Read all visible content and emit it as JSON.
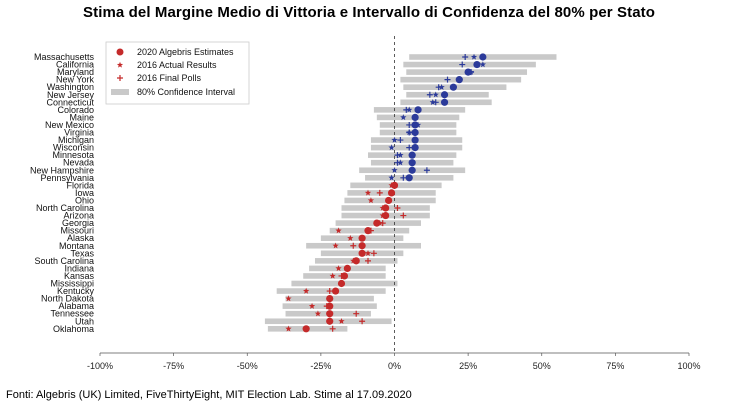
{
  "title": "Stima del Margine Medio di Vittoria e Intervallo di Confidenza del 80% per Stato",
  "source": "Fonti: Algebris (UK) Limited, FiveThirtyEight, MIT Election Lab. Stime al 17.09.2020",
  "colors": {
    "dem": "#2b3a9a",
    "rep": "#c42a2a",
    "ci": "#c9c9c9",
    "zero_line": "#333333",
    "axis": "#555555"
  },
  "chart_data": {
    "type": "scatter",
    "title": "Stima del Margine Medio di Vittoria e Intervallo di Confidenza del 80% per Stato",
    "xlabel": "",
    "ylabel": "",
    "xlim": [
      -100,
      100
    ],
    "x_ticks": [
      -100,
      -75,
      -50,
      -25,
      0,
      25,
      50,
      75,
      100
    ],
    "x_tick_labels": [
      "-100%",
      "-75%",
      "-50%",
      "-25%",
      "0%",
      "25%",
      "50%",
      "75%",
      "100%"
    ],
    "zero_line": "dashed",
    "grid": false,
    "legend_position": "top-left",
    "legend": [
      {
        "label": "2020 Algebris Estimates",
        "marker": "circle"
      },
      {
        "label": "2016 Actual Results",
        "marker": "star"
      },
      {
        "label": "2016 Final Polls",
        "marker": "plus"
      },
      {
        "label": "80% Confidence Interval",
        "marker": "bar"
      }
    ],
    "states": [
      {
        "name": "Massachusetts",
        "estimate": 30,
        "ci": [
          5,
          55
        ],
        "actual": 27,
        "poll": 24
      },
      {
        "name": "California",
        "estimate": 28,
        "ci": [
          3,
          48
        ],
        "actual": 30,
        "poll": 23
      },
      {
        "name": "Maryland",
        "estimate": 25,
        "ci": [
          4,
          45
        ],
        "actual": 26,
        "poll": 26
      },
      {
        "name": "New York",
        "estimate": 22,
        "ci": [
          2,
          43
        ],
        "actual": 22,
        "poll": 18
      },
      {
        "name": "Washington",
        "estimate": 20,
        "ci": [
          3,
          38
        ],
        "actual": 16,
        "poll": 15
      },
      {
        "name": "New Jersey",
        "estimate": 17,
        "ci": [
          4,
          32
        ],
        "actual": 14,
        "poll": 12
      },
      {
        "name": "Connecticut",
        "estimate": 17,
        "ci": [
          2,
          33
        ],
        "actual": 13,
        "poll": 14
      },
      {
        "name": "Colorado",
        "estimate": 8,
        "ci": [
          -7,
          24
        ],
        "actual": 5,
        "poll": 4
      },
      {
        "name": "Maine",
        "estimate": 7,
        "ci": [
          -6,
          22
        ],
        "actual": 3,
        "poll": 7
      },
      {
        "name": "New Mexico",
        "estimate": 7,
        "ci": [
          -5,
          21
        ],
        "actual": 8,
        "poll": 5
      },
      {
        "name": "Virginia",
        "estimate": 7,
        "ci": [
          -5,
          21
        ],
        "actual": 5,
        "poll": 5
      },
      {
        "name": "Michigan",
        "estimate": 7,
        "ci": [
          -8,
          23
        ],
        "actual": 0,
        "poll": 2
      },
      {
        "name": "Wisconsin",
        "estimate": 7,
        "ci": [
          -8,
          23
        ],
        "actual": -1,
        "poll": 5
      },
      {
        "name": "Minnesota",
        "estimate": 6,
        "ci": [
          -9,
          21
        ],
        "actual": 2,
        "poll": 1
      },
      {
        "name": "Nevada",
        "estimate": 6,
        "ci": [
          -8,
          20
        ],
        "actual": 2,
        "poll": 1
      },
      {
        "name": "New Hampshire",
        "estimate": 6,
        "ci": [
          -12,
          24
        ],
        "actual": 0,
        "poll": 11
      },
      {
        "name": "Pennsylvania",
        "estimate": 5,
        "ci": [
          -10,
          20
        ],
        "actual": -1,
        "poll": 3
      },
      {
        "name": "Florida",
        "estimate": 0,
        "ci": [
          -15,
          16
        ],
        "actual": -1,
        "poll": 0
      },
      {
        "name": "Iowa",
        "estimate": -1,
        "ci": [
          -16,
          14
        ],
        "actual": -9,
        "poll": -5
      },
      {
        "name": "Ohio",
        "estimate": -2,
        "ci": [
          -17,
          14
        ],
        "actual": -8,
        "poll": -2
      },
      {
        "name": "North Carolina",
        "estimate": -3,
        "ci": [
          -18,
          12
        ],
        "actual": -4,
        "poll": 1
      },
      {
        "name": "Arizona",
        "estimate": -3,
        "ci": [
          -18,
          12
        ],
        "actual": -4,
        "poll": 3
      },
      {
        "name": "Georgia",
        "estimate": -6,
        "ci": [
          -20,
          9
        ],
        "actual": -5,
        "poll": -4
      },
      {
        "name": "Missouri",
        "estimate": -9,
        "ci": [
          -22,
          5
        ],
        "actual": -19,
        "poll": -8
      },
      {
        "name": "Alaska",
        "estimate": -11,
        "ci": [
          -25,
          3
        ],
        "actual": -15,
        "poll": -11
      },
      {
        "name": "Montana",
        "estimate": -11,
        "ci": [
          -30,
          9
        ],
        "actual": -20,
        "poll": -14
      },
      {
        "name": "Texas",
        "estimate": -11,
        "ci": [
          -25,
          3
        ],
        "actual": -9,
        "poll": -7
      },
      {
        "name": "South Carolina",
        "estimate": -13,
        "ci": [
          -27,
          1
        ],
        "actual": -14,
        "poll": -9
      },
      {
        "name": "Indiana",
        "estimate": -16,
        "ci": [
          -29,
          -3
        ],
        "actual": -19,
        "poll": -16
      },
      {
        "name": "Kansas",
        "estimate": -17,
        "ci": [
          -31,
          -3
        ],
        "actual": -21,
        "poll": -18
      },
      {
        "name": "Mississippi",
        "estimate": -18,
        "ci": [
          -35,
          1
        ],
        "actual": -18,
        "poll": -18
      },
      {
        "name": "Kentucky",
        "estimate": -20,
        "ci": [
          -40,
          -3
        ],
        "actual": -30,
        "poll": -22
      },
      {
        "name": "North Dakota",
        "estimate": -22,
        "ci": [
          -37,
          -7
        ],
        "actual": -36,
        "poll": -22
      },
      {
        "name": "Alabama",
        "estimate": -22,
        "ci": [
          -38,
          -6
        ],
        "actual": -28,
        "poll": -23
      },
      {
        "name": "Tennessee",
        "estimate": -22,
        "ci": [
          -37,
          -8
        ],
        "actual": -26,
        "poll": -13
      },
      {
        "name": "Utah",
        "estimate": -22,
        "ci": [
          -44,
          -1
        ],
        "actual": -18,
        "poll": -11
      },
      {
        "name": "Oklahoma",
        "estimate": -30,
        "ci": [
          -43,
          -16
        ],
        "actual": -36,
        "poll": -21
      }
    ]
  }
}
